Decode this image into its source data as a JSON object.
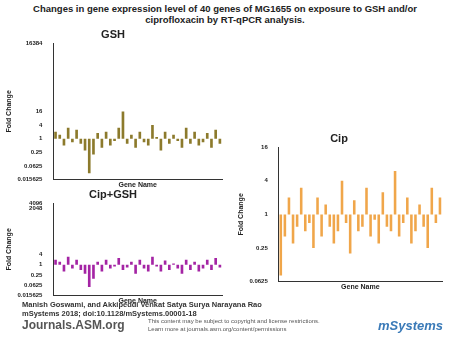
{
  "header": {
    "title": "Changes in gene expression level of 40 genes of MG1655 on exposure to GSH and/or ciprofloxacin by RT-qPCR analysis."
  },
  "chart_data": [
    {
      "type": "bar",
      "title": "GSH",
      "x_label": "Gene Name",
      "y_label": "Fold Change",
      "log": "y",
      "color": "#8c7a2c",
      "grid": false,
      "tick_labels": "y",
      "categories": [
        null,
        null,
        null,
        null,
        null,
        null,
        null,
        null,
        null,
        null,
        null,
        null,
        null,
        null,
        null,
        null,
        null,
        null,
        null,
        null,
        null,
        null,
        null,
        null,
        null,
        null,
        null,
        null,
        null,
        null,
        null,
        null,
        null,
        null,
        null,
        null,
        null,
        null,
        null,
        null
      ],
      "values": [
        2,
        1.5,
        0.5,
        3,
        0.7,
        2.5,
        0.6,
        0.3,
        0.03,
        0.2,
        1.8,
        0.4,
        2,
        0.5,
        0.8,
        3,
        16,
        0.6,
        1.5,
        0.4,
        2,
        0.7,
        0.5,
        4,
        1.2,
        0.3,
        2,
        0.6,
        1.5,
        0.8,
        0.4,
        3,
        0.6,
        2,
        0.5,
        0.7,
        1.8,
        0.4,
        2.5,
        0.6
      ],
      "ylim": [
        0.015625,
        16384
      ],
      "yticks": [
        0.015625,
        0.0625,
        0.25,
        1,
        4,
        16,
        16384
      ]
    },
    {
      "type": "bar",
      "title": "Cip",
      "x_label": "Gene Name",
      "y_label": "Fold Change",
      "log": "y",
      "color": "#f0a64a",
      "grid": false,
      "tick_labels": "y",
      "categories": [
        null,
        null,
        null,
        null,
        null,
        null,
        null,
        null,
        null,
        null,
        null,
        null,
        null,
        null,
        null,
        null,
        null,
        null,
        null,
        null,
        null,
        null,
        null,
        null,
        null,
        null,
        null,
        null,
        null,
        null,
        null,
        null,
        null,
        null,
        null,
        null,
        null,
        null,
        null,
        null
      ],
      "values": [
        0.08,
        0.4,
        2,
        0.3,
        0.6,
        3,
        0.5,
        0.7,
        0.25,
        2,
        0.4,
        1.5,
        0.6,
        0.3,
        0.5,
        4,
        0.7,
        0.2,
        1.8,
        0.5,
        0.6,
        3,
        0.4,
        0.8,
        0.3,
        2.5,
        0.6,
        0.5,
        6,
        0.4,
        0.7,
        2,
        0.3,
        0.5,
        1.5,
        0.6,
        0.25,
        3,
        0.7,
        2
      ],
      "ylim": [
        0.0625,
        16
      ],
      "yticks": [
        0.0625,
        0.25,
        1,
        4,
        16
      ]
    },
    {
      "type": "bar",
      "title": "Cip+GSH",
      "x_label": "Gene Name",
      "y_label": "Fold Change",
      "log": "y",
      "color": "#a424a4",
      "grid": false,
      "tick_labels": "y",
      "categories": [
        null,
        null,
        null,
        null,
        null,
        null,
        null,
        null,
        null,
        null,
        null,
        null,
        null,
        null,
        null,
        null,
        null,
        null,
        null,
        null,
        null,
        null,
        null,
        null,
        null,
        null,
        null,
        null,
        null,
        null,
        null,
        null,
        null,
        null,
        null,
        null,
        null,
        null,
        null,
        null
      ],
      "values": [
        2,
        1.5,
        0.4,
        3,
        0.6,
        2,
        0.5,
        0.3,
        0.05,
        0.15,
        1.5,
        0.4,
        2,
        0.6,
        0.8,
        2.5,
        0.5,
        0.7,
        1.5,
        0.3,
        2,
        0.6,
        0.4,
        3,
        0.8,
        0.4,
        1.8,
        0.5,
        1.2,
        0.6,
        0.3,
        2,
        0.5,
        1.5,
        0.4,
        0.6,
        2,
        0.5,
        2.5,
        0.7
      ],
      "ylim": [
        0.015625,
        4096
      ],
      "yticks": [
        0.015625,
        0.0625,
        0.25,
        1,
        4,
        2048,
        4096
      ]
    }
  ],
  "footer": {
    "citation": "Manish Goswami, and Akkipeddi Venkat Satya Surya Narayana Rao mSystems 2018; doi:10.1128/mSystems.00001-18",
    "journal": "Journals.ASM.org",
    "rights": [
      "This content may be subject to copyright and license restrictions.",
      "Learn more at journals.asm.org/content/permissions"
    ],
    "logo": "mSystems"
  }
}
